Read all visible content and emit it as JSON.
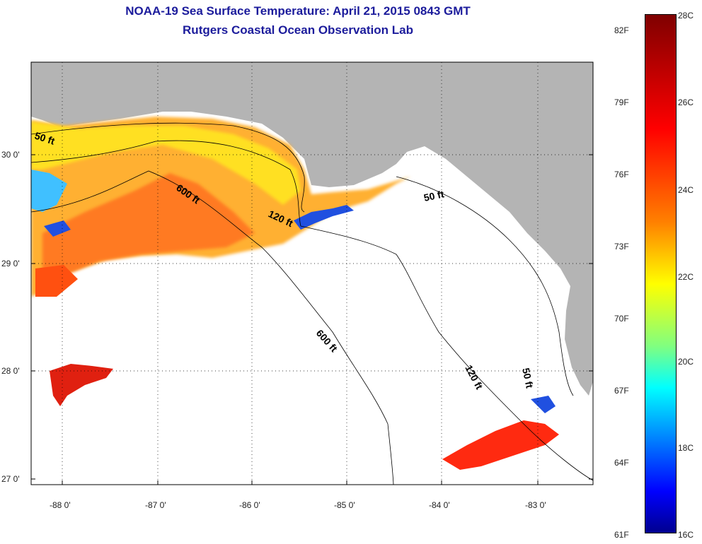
{
  "title": {
    "line1": "NOAA-19 Sea Surface Temperature:  April 21, 2015 0843 GMT",
    "line2": "Rutgers Coastal Ocean Observation Lab"
  },
  "axes": {
    "lat_ticks": [
      "30 0'",
      "29 0'",
      "28 0'",
      "27 0'"
    ],
    "lon_ticks": [
      "-88 0'",
      "-87 0'",
      "-86 0'",
      "-85 0'",
      "-84 0'",
      "-83 0'"
    ]
  },
  "contour_labels": [
    "50 ft",
    "600 ft",
    "120 ft",
    "50 ft",
    "600 ft",
    "120 ft",
    "50 ft"
  ],
  "colorbar": {
    "fahrenheit": [
      "82F",
      "79F",
      "76F",
      "73F",
      "70F",
      "67F",
      "64F",
      "61F"
    ],
    "celsius": [
      "28C",
      "26C",
      "24C",
      "22C",
      "20C",
      "18C",
      "16C"
    ]
  },
  "colors": {
    "land": "#b4b4b4",
    "ocean_no_data": "#ffffff",
    "title": "#1c1c9c"
  }
}
